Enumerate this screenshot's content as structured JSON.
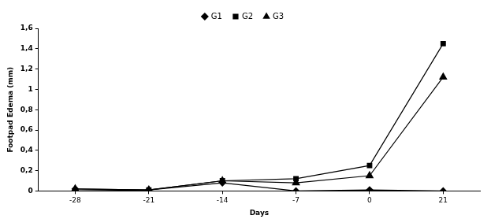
{
  "chart_data": {
    "type": "line",
    "x_label": "Days",
    "y_label": "Footpad Edema (mm)",
    "categories": [
      "-28",
      "-21",
      "-14",
      "-7",
      "0",
      "21"
    ],
    "series": [
      {
        "name": "G1",
        "color": "#000000",
        "marker": "diamond",
        "values": [
          0.02,
          0.01,
          0.08,
          0.0,
          0.01,
          0.0
        ]
      },
      {
        "name": "G2",
        "color": "#000000",
        "marker": "square",
        "values": [
          0.0,
          0.01,
          0.1,
          0.12,
          0.25,
          1.45
        ]
      },
      {
        "name": "G3",
        "color": "#000000",
        "marker": "triangle",
        "values": [
          0.02,
          0.01,
          0.1,
          0.08,
          0.15,
          1.12
        ]
      }
    ],
    "ylim": [
      0,
      1.6
    ],
    "yticks": [
      0,
      {
        "value": 0.2,
        "label": "0,2"
      },
      {
        "value": 0.4,
        "label": "0,4"
      },
      {
        "value": 0.6,
        "label": "0,6"
      },
      {
        "value": 0.8,
        "label": "0,8"
      },
      1,
      {
        "value": 1.2,
        "label": "1,2"
      },
      {
        "value": 1.4,
        "label": "1,4"
      },
      {
        "value": 1.6,
        "label": "1,6"
      }
    ],
    "grid": false,
    "legend": "top"
  }
}
